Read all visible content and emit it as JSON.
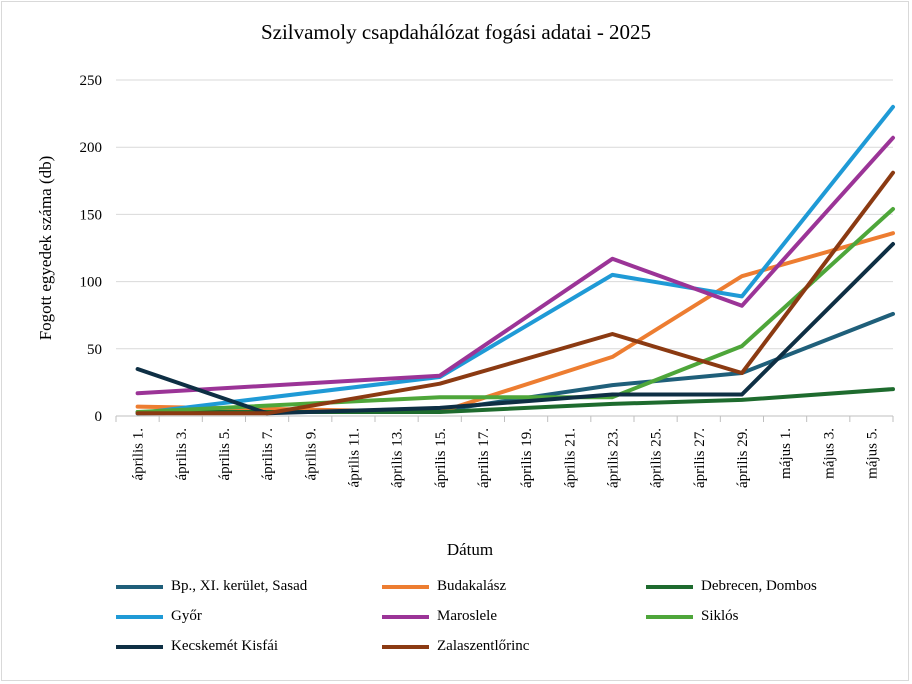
{
  "chart_data": {
    "type": "line",
    "title": "Szilvamoly csapdahálózat fogási adatai - 2025",
    "xlabel": "Dátum",
    "ylabel": "Fogott egyedek száma (db)",
    "ylim": [
      0,
      250
    ],
    "yticks": [
      0,
      50,
      100,
      150,
      200,
      250
    ],
    "categories": [
      "április 1.",
      "április 3.",
      "április 5.",
      "április 7.",
      "április 9.",
      "április 11.",
      "április 13.",
      "április 15.",
      "április 17.",
      "április 19.",
      "április 21.",
      "április 23.",
      "április 25.",
      "április 27.",
      "április 29.",
      "május 1.",
      "május 3.",
      "május 5."
    ],
    "grid": "horizontal",
    "legend_position": "bottom",
    "series": [
      {
        "name": "Bp., XI. kerület, Sasad",
        "color": "#1f5f7a",
        "points": [
          [
            0,
            2
          ],
          [
            7,
            4
          ],
          [
            11,
            23
          ],
          [
            14,
            32
          ],
          [
            17.5,
            76
          ]
        ]
      },
      {
        "name": "Budakalász",
        "color": "#ed7d31",
        "points": [
          [
            0,
            7
          ],
          [
            7,
            3
          ],
          [
            11,
            44
          ],
          [
            14,
            104
          ],
          [
            17.5,
            136
          ]
        ]
      },
      {
        "name": "Debrecen, Dombos",
        "color": "#1e6b2e",
        "points": [
          [
            0,
            3
          ],
          [
            7,
            3
          ],
          [
            11,
            9
          ],
          [
            14,
            12
          ],
          [
            17.5,
            20
          ]
        ]
      },
      {
        "name": "Győr",
        "color": "#1f9ad6",
        "points": [
          [
            0,
            2
          ],
          [
            7,
            29
          ],
          [
            11,
            105
          ],
          [
            14,
            89
          ],
          [
            17.5,
            230
          ]
        ]
      },
      {
        "name": "Maroslele",
        "color": "#9b3497",
        "points": [
          [
            0,
            17
          ],
          [
            7,
            30
          ],
          [
            11,
            117
          ],
          [
            14,
            82
          ],
          [
            17.5,
            207
          ]
        ]
      },
      {
        "name": "Siklós",
        "color": "#4ea63a",
        "points": [
          [
            0,
            3
          ],
          [
            7,
            14
          ],
          [
            11,
            14
          ],
          [
            14,
            52
          ],
          [
            17.5,
            154
          ]
        ]
      },
      {
        "name": "Kecskemét Kisfái",
        "color": "#0e2f44",
        "points": [
          [
            0,
            35
          ],
          [
            3,
            2
          ],
          [
            7,
            6
          ],
          [
            11,
            16
          ],
          [
            14,
            16
          ],
          [
            17.5,
            128
          ]
        ]
      },
      {
        "name": "Zalaszentlőrinc",
        "color": "#8b3a12",
        "points": [
          [
            0,
            2
          ],
          [
            3,
            2
          ],
          [
            7,
            24
          ],
          [
            11,
            61
          ],
          [
            14,
            32
          ],
          [
            17.5,
            181
          ]
        ]
      }
    ]
  }
}
